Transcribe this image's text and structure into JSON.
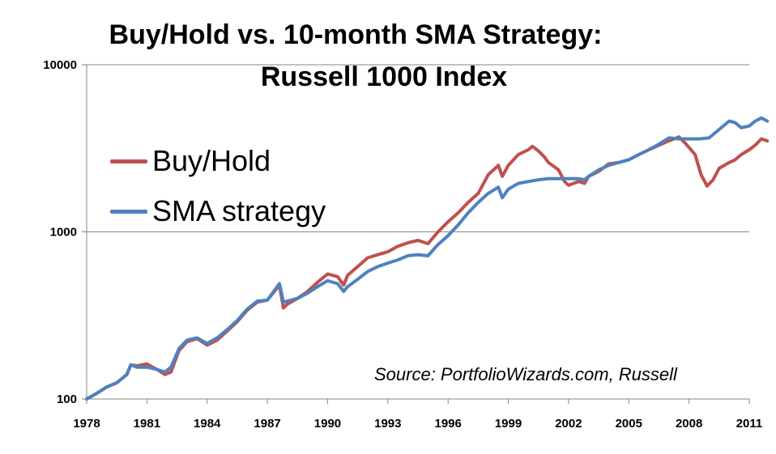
{
  "chart_data": {
    "type": "line",
    "title_line1": "Buy/Hold vs. 10-month SMA Strategy:",
    "title_line2": "Russell 1000 Index",
    "source": "Source: PortfolioWizards.com, Russell",
    "yscale": "log",
    "ylim": [
      100,
      10000
    ],
    "yticks": [
      "100",
      "1000",
      "10000"
    ],
    "xlim": [
      1978,
      2011
    ],
    "xticks": [
      "1978",
      "1981",
      "1984",
      "1987",
      "1990",
      "1993",
      "1996",
      "1999",
      "2002",
      "2005",
      "2008",
      "2011"
    ],
    "grid": "horizontal",
    "legend_position": "upper-left",
    "colors": {
      "buy_hold": "#C0504D",
      "sma": "#4F81BD"
    },
    "series": [
      {
        "name": "Buy/Hold",
        "x": [
          1978.0,
          1978.5,
          1979.0,
          1979.5,
          1980.0,
          1980.2,
          1980.5,
          1981.0,
          1981.5,
          1981.9,
          1982.2,
          1982.6,
          1983.0,
          1983.5,
          1984.0,
          1984.5,
          1985.0,
          1985.5,
          1986.0,
          1986.5,
          1987.0,
          1987.6,
          1987.8,
          1988.0,
          1988.5,
          1989.0,
          1989.5,
          1990.0,
          1990.5,
          1990.8,
          1991.0,
          1991.5,
          1992.0,
          1992.5,
          1993.0,
          1993.5,
          1994.0,
          1994.5,
          1995.0,
          1995.5,
          1996.0,
          1996.5,
          1997.0,
          1997.5,
          1998.0,
          1998.5,
          1998.7,
          1999.0,
          1999.5,
          2000.0,
          2000.2,
          2000.5,
          2000.8,
          2001.0,
          2001.5,
          2001.8,
          2002.0,
          2002.5,
          2002.8,
          2003.0,
          2003.5,
          2004.0,
          2004.5,
          2005.0,
          2005.5,
          2006.0,
          2006.5,
          2007.0,
          2007.5,
          2007.8,
          2008.0,
          2008.3,
          2008.6,
          2008.9,
          2009.2,
          2009.5,
          2010.0,
          2010.3,
          2010.6,
          2011.0,
          2011.3,
          2011.6,
          2011.9
        ],
        "y": [
          100,
          108,
          118,
          125,
          140,
          160,
          158,
          162,
          150,
          140,
          145,
          195,
          220,
          230,
          210,
          225,
          255,
          290,
          340,
          380,
          390,
          480,
          350,
          370,
          400,
          440,
          500,
          560,
          540,
          480,
          550,
          620,
          700,
          730,
          760,
          820,
          860,
          890,
          850,
          1000,
          1150,
          1300,
          1500,
          1700,
          2200,
          2500,
          2150,
          2500,
          2900,
          3100,
          3250,
          3050,
          2800,
          2600,
          2350,
          2000,
          1900,
          2000,
          1950,
          2150,
          2300,
          2550,
          2600,
          2700,
          2900,
          3100,
          3300,
          3500,
          3700,
          3400,
          3200,
          2900,
          2200,
          1880,
          2050,
          2400,
          2600,
          2700,
          2900,
          3100,
          3300,
          3600,
          3500
        ]
      },
      {
        "name": "SMA strategy",
        "x": [
          1978.0,
          1978.5,
          1979.0,
          1979.5,
          1980.0,
          1980.2,
          1980.5,
          1981.0,
          1981.5,
          1981.9,
          1982.2,
          1982.6,
          1983.0,
          1983.5,
          1984.0,
          1984.5,
          1985.0,
          1985.5,
          1986.0,
          1986.5,
          1987.0,
          1987.6,
          1987.8,
          1988.0,
          1988.5,
          1989.0,
          1989.5,
          1990.0,
          1990.5,
          1990.8,
          1991.0,
          1991.5,
          1992.0,
          1992.5,
          1993.0,
          1993.5,
          1994.0,
          1994.5,
          1995.0,
          1995.5,
          1996.0,
          1996.5,
          1997.0,
          1997.5,
          1998.0,
          1998.5,
          1998.7,
          1999.0,
          1999.5,
          2000.0,
          2000.5,
          2001.0,
          2001.5,
          2002.0,
          2002.5,
          2002.8,
          2003.0,
          2003.5,
          2004.0,
          2004.5,
          2005.0,
          2005.5,
          2006.0,
          2006.5,
          2007.0,
          2007.5,
          2008.0,
          2008.5,
          2009.0,
          2009.5,
          2010.0,
          2010.3,
          2010.6,
          2011.0,
          2011.3,
          2011.6,
          2011.9
        ],
        "y": [
          100,
          108,
          118,
          125,
          140,
          160,
          155,
          155,
          150,
          145,
          155,
          200,
          225,
          232,
          215,
          232,
          260,
          295,
          345,
          385,
          390,
          490,
          380,
          385,
          400,
          430,
          470,
          510,
          490,
          440,
          470,
          520,
          580,
          620,
          650,
          680,
          720,
          730,
          720,
          840,
          950,
          1100,
          1300,
          1500,
          1700,
          1850,
          1600,
          1800,
          1950,
          2000,
          2050,
          2080,
          2080,
          2080,
          2080,
          2050,
          2150,
          2350,
          2500,
          2600,
          2700,
          2900,
          3100,
          3350,
          3650,
          3600,
          3600,
          3600,
          3650,
          4100,
          4600,
          4500,
          4200,
          4300,
          4600,
          4800,
          4600
        ]
      }
    ]
  }
}
